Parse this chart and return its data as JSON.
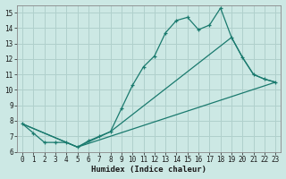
{
  "xlabel": "Humidex (Indice chaleur)",
  "bg_color": "#cce8e4",
  "grid_color": "#b0d0cc",
  "line_color": "#1a7a6e",
  "xlim": [
    -0.5,
    23.5
  ],
  "ylim": [
    6,
    15.5
  ],
  "xticks": [
    0,
    1,
    2,
    3,
    4,
    5,
    6,
    7,
    8,
    9,
    10,
    11,
    12,
    13,
    14,
    15,
    16,
    17,
    18,
    19,
    20,
    21,
    22,
    23
  ],
  "yticks": [
    6,
    7,
    8,
    9,
    10,
    11,
    12,
    13,
    14,
    15
  ],
  "line1_x": [
    0,
    1,
    2,
    3,
    4,
    5,
    6,
    7,
    8,
    9,
    10,
    11,
    12,
    13,
    14,
    15,
    16,
    17,
    18,
    19,
    20,
    21,
    22,
    23
  ],
  "line1_y": [
    7.8,
    7.2,
    6.6,
    6.6,
    6.6,
    6.3,
    6.7,
    7.0,
    7.3,
    8.8,
    10.3,
    11.5,
    12.2,
    13.7,
    14.5,
    14.7,
    13.9,
    14.2,
    15.3,
    13.4,
    12.1,
    11.0,
    10.7,
    10.5
  ],
  "line2_x": [
    0,
    5,
    8,
    19,
    20,
    21,
    22,
    23
  ],
  "line2_y": [
    7.8,
    6.3,
    7.3,
    13.4,
    12.1,
    11.0,
    10.7,
    10.5
  ],
  "line3_x": [
    0,
    5,
    23
  ],
  "line3_y": [
    7.8,
    6.3,
    10.5
  ]
}
